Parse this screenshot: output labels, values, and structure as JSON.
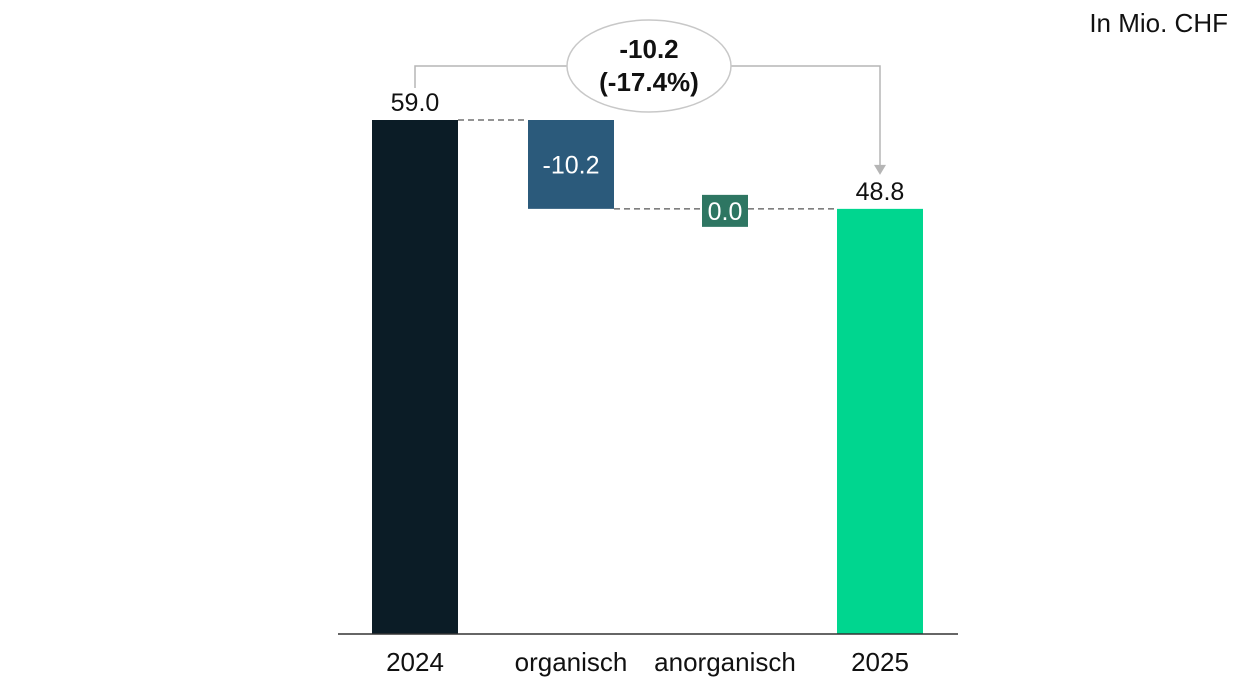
{
  "unit_label": "In Mio. CHF",
  "chart_data": {
    "type": "waterfall",
    "title": "",
    "categories": [
      "2024",
      "organisch",
      "anorganisch",
      "2025"
    ],
    "bars": [
      {
        "category": "2024",
        "kind": "total",
        "value": 59.0,
        "label": "59.0",
        "color": "#0b1c26"
      },
      {
        "category": "organisch",
        "kind": "delta",
        "value": -10.2,
        "label": "-10.2",
        "color": "#2b5a7b"
      },
      {
        "category": "anorganisch",
        "kind": "delta",
        "value": 0.0,
        "label": "0.0",
        "color": "#2e7662"
      },
      {
        "category": "2025",
        "kind": "total",
        "value": 48.8,
        "label": "48.8",
        "color": "#00d68f"
      }
    ],
    "change_bubble": {
      "line1": "-10.2",
      "line2": "(-17.4%)",
      "from": "2024",
      "to": "2025"
    },
    "ylim": [
      0,
      59.0
    ],
    "grid": false,
    "connector_lines": "dashed"
  }
}
